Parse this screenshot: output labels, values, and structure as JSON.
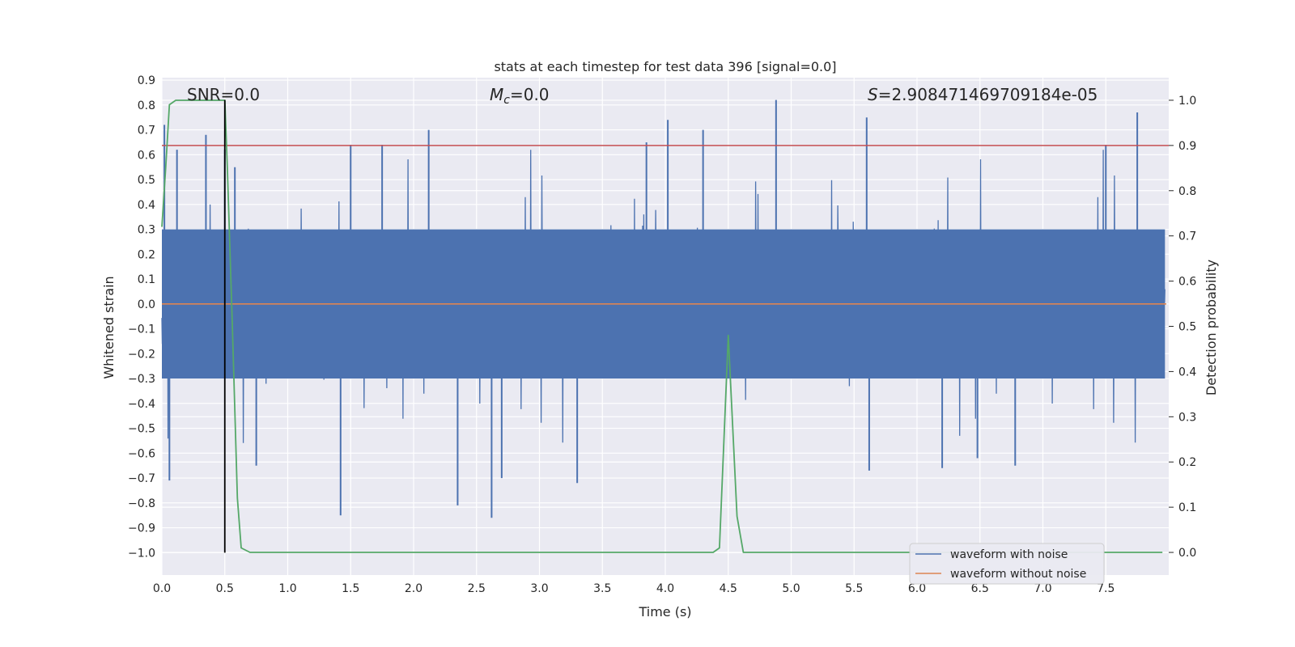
{
  "chart_data": {
    "type": "line",
    "title": "stats at each timestep for test data 396 [signal=0.0]",
    "xlabel": "Time (s)",
    "ylabel": "Whitened strain",
    "y2label": "Detection probability",
    "xlim": [
      0.0,
      8.0
    ],
    "ylim": [
      -1.09,
      0.91
    ],
    "y2lim": [
      -0.05,
      1.05
    ],
    "xticks": [
      "0.0",
      "0.5",
      "1.0",
      "1.5",
      "2.0",
      "2.5",
      "3.0",
      "3.5",
      "4.0",
      "4.5",
      "5.0",
      "5.5",
      "6.0",
      "6.5",
      "7.0",
      "7.5"
    ],
    "yticks": [
      "0.9",
      "0.8",
      "0.7",
      "0.6",
      "0.5",
      "0.4",
      "0.3",
      "0.2",
      "0.1",
      "0.0",
      "−0.1",
      "−0.2",
      "−0.3",
      "−0.4",
      "−0.5",
      "−0.6",
      "−0.7",
      "−0.8",
      "−0.9",
      "−1.0"
    ],
    "y2ticks": [
      "1.0",
      "0.9",
      "0.8",
      "0.7",
      "0.6",
      "0.5",
      "0.4",
      "0.3",
      "0.2",
      "0.1",
      "0.0"
    ],
    "annotations": {
      "snr": "SNR=0.0",
      "mc_symbol": "M",
      "mc_sub": "c",
      "mc_value": "=0.0",
      "s_symbol": "S",
      "s_value": "=2.908471469709184e-05"
    },
    "series": [
      {
        "name": "waveform with noise",
        "color": "#4c72b0",
        "axis": "left",
        "note": "whitened noisy strain, mostly within ±0.3 with spikes to ~0.82 and ~-0.87",
        "band_envelope": [
          -0.3,
          0.3
        ],
        "spikes": [
          {
            "x": 0.02,
            "y": 0.72
          },
          {
            "x": 0.06,
            "y": -0.71
          },
          {
            "x": 0.12,
            "y": 0.62
          },
          {
            "x": 0.35,
            "y": 0.68
          },
          {
            "x": 0.5,
            "y": 0.62
          },
          {
            "x": 0.58,
            "y": 0.55
          },
          {
            "x": 0.75,
            "y": -0.65
          },
          {
            "x": 1.42,
            "y": -0.85
          },
          {
            "x": 1.5,
            "y": 0.64
          },
          {
            "x": 1.75,
            "y": 0.64
          },
          {
            "x": 2.12,
            "y": 0.7
          },
          {
            "x": 2.35,
            "y": -0.81
          },
          {
            "x": 2.62,
            "y": -0.86
          },
          {
            "x": 2.7,
            "y": -0.7
          },
          {
            "x": 3.3,
            "y": -0.72
          },
          {
            "x": 3.85,
            "y": 0.65
          },
          {
            "x": 4.02,
            "y": 0.74
          },
          {
            "x": 4.3,
            "y": 0.7
          },
          {
            "x": 4.88,
            "y": 0.82
          },
          {
            "x": 5.6,
            "y": 0.75
          },
          {
            "x": 5.62,
            "y": -0.67
          },
          {
            "x": 6.2,
            "y": -0.66
          },
          {
            "x": 6.48,
            "y": -0.62
          },
          {
            "x": 6.78,
            "y": -0.65
          },
          {
            "x": 7.5,
            "y": 0.64
          },
          {
            "x": 7.75,
            "y": 0.77
          }
        ]
      },
      {
        "name": "waveform without noise",
        "color": "#dd8452",
        "axis": "left",
        "x": [
          0.0,
          8.0
        ],
        "y": [
          0.0,
          0.0
        ]
      },
      {
        "name": "detection probability",
        "color": "#55a868",
        "axis": "right",
        "x": [
          0.0,
          0.03,
          0.06,
          0.11,
          0.5,
          0.52,
          0.56,
          0.6,
          0.63,
          0.7,
          0.75,
          4.38,
          4.43,
          4.5,
          4.57,
          4.62,
          7.95
        ],
        "y": [
          0.72,
          0.85,
          0.99,
          1.0,
          1.0,
          0.85,
          0.5,
          0.12,
          0.01,
          0.0,
          0.0,
          0.0,
          0.01,
          0.48,
          0.08,
          0.0,
          0.0
        ]
      }
    ],
    "reference_lines": [
      {
        "axis": "right",
        "orientation": "horizontal",
        "value": 0.9,
        "color": "#c44e52"
      },
      {
        "axis": "x",
        "orientation": "vertical",
        "value": 0.5,
        "color": "#000000",
        "ymin": -1.0,
        "ymax": 0.82
      }
    ],
    "legend": {
      "placement": "lower right",
      "entries": [
        "waveform with noise",
        "waveform without noise"
      ]
    },
    "grid": true
  }
}
